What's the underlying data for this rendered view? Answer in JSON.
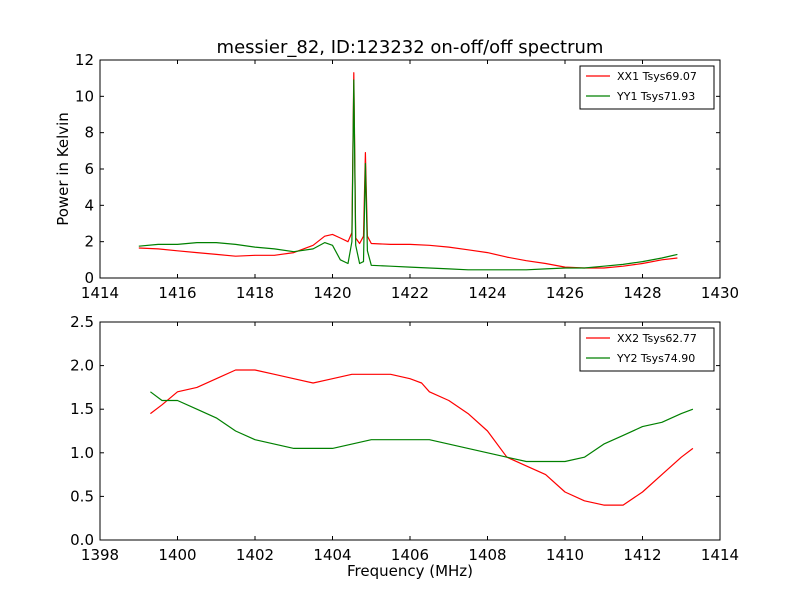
{
  "chart_data": [
    {
      "type": "line",
      "title": "messier_82, ID:123232 on-off/off spectrum",
      "xlabel": "",
      "ylabel": "Power in Kelvin",
      "xlim": [
        1414,
        1430
      ],
      "ylim": [
        0,
        12
      ],
      "xticks": [
        1414,
        1416,
        1418,
        1420,
        1422,
        1424,
        1426,
        1428,
        1430
      ],
      "yticks": [
        0,
        2,
        4,
        6,
        8,
        10,
        12
      ],
      "xtick_labels": [
        "1414",
        "1416",
        "1418",
        "1420",
        "1422",
        "1424",
        "1426",
        "1428",
        "1430"
      ],
      "ytick_labels": [
        "0",
        "2",
        "4",
        "6",
        "8",
        "10",
        "12"
      ],
      "grid": false,
      "legend_position": "top-right",
      "series": [
        {
          "name": "XX1 Tsys69.07",
          "color": "#ff0000",
          "x": [
            1415.0,
            1415.5,
            1416.0,
            1416.5,
            1417.0,
            1417.5,
            1418.0,
            1418.5,
            1419.0,
            1419.5,
            1419.8,
            1420.0,
            1420.2,
            1420.4,
            1420.5,
            1420.55,
            1420.6,
            1420.7,
            1420.8,
            1420.85,
            1420.9,
            1421.0,
            1421.5,
            1422.0,
            1422.5,
            1423.0,
            1423.5,
            1424.0,
            1424.5,
            1425.0,
            1425.5,
            1426.0,
            1426.5,
            1427.0,
            1427.5,
            1428.0,
            1428.5,
            1428.9
          ],
          "values": [
            1.65,
            1.6,
            1.5,
            1.4,
            1.3,
            1.2,
            1.25,
            1.25,
            1.4,
            1.8,
            2.3,
            2.4,
            2.2,
            2.0,
            2.5,
            11.3,
            2.2,
            1.9,
            2.3,
            6.9,
            2.3,
            1.9,
            1.85,
            1.85,
            1.8,
            1.7,
            1.55,
            1.4,
            1.15,
            0.95,
            0.8,
            0.6,
            0.55,
            0.55,
            0.65,
            0.8,
            1.0,
            1.1
          ]
        },
        {
          "name": "YY1 Tsys71.93",
          "color": "#008000",
          "x": [
            1415.0,
            1415.5,
            1416.0,
            1416.5,
            1417.0,
            1417.5,
            1418.0,
            1418.5,
            1419.0,
            1419.5,
            1419.8,
            1420.0,
            1420.2,
            1420.4,
            1420.5,
            1420.55,
            1420.6,
            1420.7,
            1420.8,
            1420.85,
            1420.9,
            1421.0,
            1421.5,
            1422.0,
            1422.5,
            1423.0,
            1423.5,
            1424.0,
            1424.5,
            1425.0,
            1425.5,
            1426.0,
            1426.5,
            1427.0,
            1427.5,
            1428.0,
            1428.5,
            1428.9
          ],
          "values": [
            1.75,
            1.85,
            1.85,
            1.95,
            1.95,
            1.85,
            1.7,
            1.6,
            1.45,
            1.6,
            1.95,
            1.8,
            1.0,
            0.8,
            2.0,
            10.9,
            1.8,
            0.8,
            0.9,
            6.3,
            1.5,
            0.7,
            0.65,
            0.6,
            0.55,
            0.5,
            0.45,
            0.45,
            0.45,
            0.45,
            0.5,
            0.55,
            0.55,
            0.65,
            0.75,
            0.9,
            1.1,
            1.3
          ]
        }
      ]
    },
    {
      "type": "line",
      "title": "",
      "xlabel": "Frequency (MHz)",
      "ylabel": "",
      "xlim": [
        1398,
        1414
      ],
      "ylim": [
        0.0,
        2.5
      ],
      "xticks": [
        1398,
        1400,
        1402,
        1404,
        1406,
        1408,
        1410,
        1412,
        1414
      ],
      "yticks": [
        0.0,
        0.5,
        1.0,
        1.5,
        2.0,
        2.5
      ],
      "xtick_labels": [
        "1398",
        "1400",
        "1402",
        "1404",
        "1406",
        "1408",
        "1410",
        "1412",
        "1414"
      ],
      "ytick_labels": [
        "0.0",
        "0.5",
        "1.0",
        "1.5",
        "2.0",
        "2.5"
      ],
      "grid": false,
      "legend_position": "top-right",
      "series": [
        {
          "name": "XX2 Tsys62.77",
          "color": "#ff0000",
          "x": [
            1399.3,
            1399.6,
            1400.0,
            1400.5,
            1401.0,
            1401.5,
            1402.0,
            1402.5,
            1403.0,
            1403.5,
            1404.0,
            1404.5,
            1405.0,
            1405.5,
            1406.0,
            1406.3,
            1406.5,
            1407.0,
            1407.5,
            1408.0,
            1408.5,
            1409.0,
            1409.5,
            1410.0,
            1410.5,
            1411.0,
            1411.5,
            1412.0,
            1412.5,
            1413.0,
            1413.3
          ],
          "values": [
            1.45,
            1.55,
            1.7,
            1.75,
            1.85,
            1.95,
            1.95,
            1.9,
            1.85,
            1.8,
            1.85,
            1.9,
            1.9,
            1.9,
            1.85,
            1.8,
            1.7,
            1.6,
            1.45,
            1.25,
            0.95,
            0.85,
            0.75,
            0.55,
            0.45,
            0.4,
            0.4,
            0.55,
            0.75,
            0.95,
            1.05
          ]
        },
        {
          "name": "YY2 Tsys74.90",
          "color": "#008000",
          "x": [
            1399.3,
            1399.6,
            1400.0,
            1400.5,
            1401.0,
            1401.5,
            1402.0,
            1402.5,
            1403.0,
            1403.5,
            1404.0,
            1404.5,
            1405.0,
            1405.5,
            1406.0,
            1406.5,
            1407.0,
            1407.5,
            1408.0,
            1408.5,
            1409.0,
            1409.5,
            1410.0,
            1410.5,
            1411.0,
            1411.5,
            1412.0,
            1412.5,
            1413.0,
            1413.3
          ],
          "values": [
            1.7,
            1.6,
            1.6,
            1.5,
            1.4,
            1.25,
            1.15,
            1.1,
            1.05,
            1.05,
            1.05,
            1.1,
            1.15,
            1.15,
            1.15,
            1.15,
            1.1,
            1.05,
            1.0,
            0.95,
            0.9,
            0.9,
            0.9,
            0.95,
            1.1,
            1.2,
            1.3,
            1.35,
            1.45,
            1.5
          ]
        }
      ]
    }
  ]
}
